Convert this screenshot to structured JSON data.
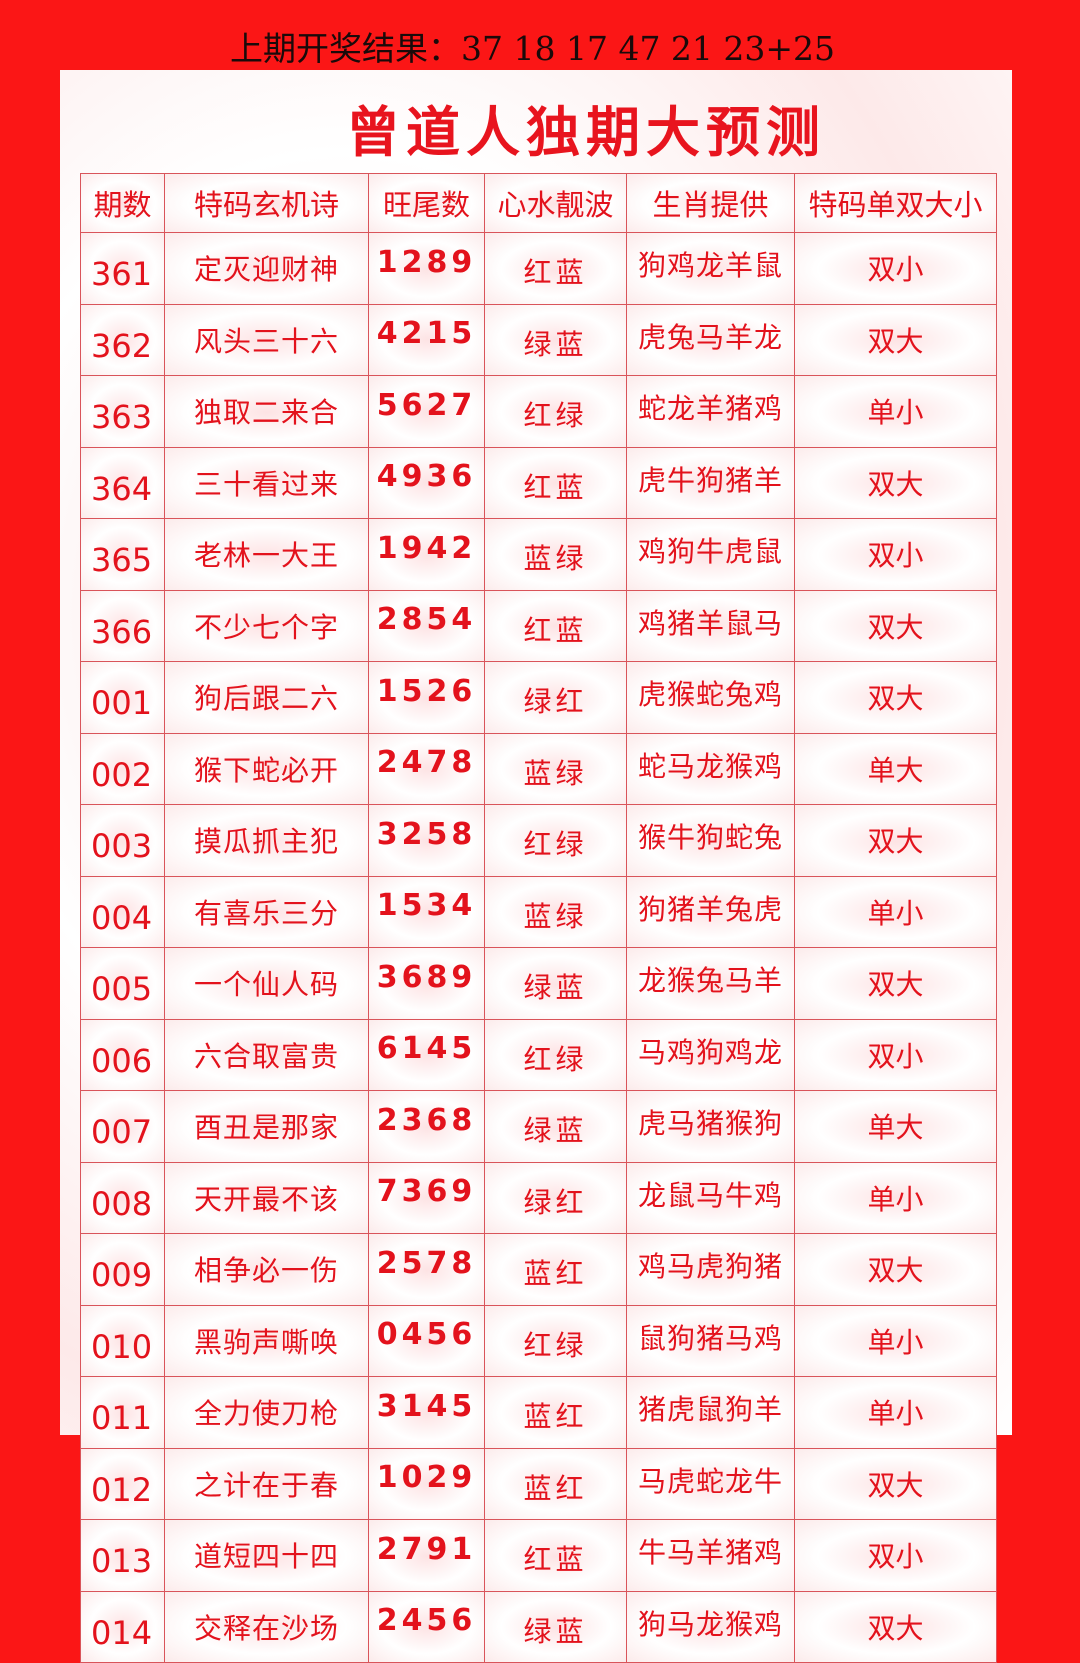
{
  "header": {
    "last_result": "上期开奖结果：37 18 17 47 21 23+25"
  },
  "title": "曾道人独期大预测",
  "colors": {
    "background": "#fb1616",
    "text": "#e3121c"
  },
  "table": {
    "columns": [
      "期数",
      "特码玄机诗",
      "旺尾数",
      "心水靓波",
      "生肖提供",
      "特码单双大小"
    ],
    "rows": [
      [
        "361",
        "定灭迎财神",
        "1289",
        "红蓝",
        "狗鸡龙羊鼠",
        "双小"
      ],
      [
        "362",
        "风头三十六",
        "4215",
        "绿蓝",
        "虎兔马羊龙",
        "双大"
      ],
      [
        "363",
        "独取二来合",
        "5627",
        "红绿",
        "蛇龙羊猪鸡",
        "单小"
      ],
      [
        "364",
        "三十看过来",
        "4936",
        "红蓝",
        "虎牛狗猪羊",
        "双大"
      ],
      [
        "365",
        "老林一大王",
        "1942",
        "蓝绿",
        "鸡狗牛虎鼠",
        "双小"
      ],
      [
        "366",
        "不少七个字",
        "2854",
        "红蓝",
        "鸡猪羊鼠马",
        "双大"
      ],
      [
        "001",
        "狗后跟二六",
        "1526",
        "绿红",
        "虎猴蛇兔鸡",
        "双大"
      ],
      [
        "002",
        "猴下蛇必开",
        "2478",
        "蓝绿",
        "蛇马龙猴鸡",
        "单大"
      ],
      [
        "003",
        "摸瓜抓主犯",
        "3258",
        "红绿",
        "猴牛狗蛇兔",
        "双大"
      ],
      [
        "004",
        "有喜乐三分",
        "1534",
        "蓝绿",
        "狗猪羊兔虎",
        "单小"
      ],
      [
        "005",
        "一个仙人码",
        "3689",
        "绿蓝",
        "龙猴兔马羊",
        "双大"
      ],
      [
        "006",
        "六合取富贵",
        "6145",
        "红绿",
        "马鸡狗鸡龙",
        "双小"
      ],
      [
        "007",
        "酉丑是那家",
        "2368",
        "绿蓝",
        "虎马猪猴狗",
        "单大"
      ],
      [
        "008",
        "天开最不该",
        "7369",
        "绿红",
        "龙鼠马牛鸡",
        "单小"
      ],
      [
        "009",
        "相争必一伤",
        "2578",
        "蓝红",
        "鸡马虎狗猪",
        "双大"
      ],
      [
        "010",
        "黑驹声嘶唤",
        "0456",
        "红绿",
        "鼠狗猪马鸡",
        "单小"
      ],
      [
        "011",
        "全力使刀枪",
        "3145",
        "蓝红",
        "猪虎鼠狗羊",
        "单小"
      ],
      [
        "012",
        "之计在于春",
        "1029",
        "蓝红",
        "马虎蛇龙牛",
        "双大"
      ],
      [
        "013",
        "道短四十四",
        "2791",
        "红蓝",
        "牛马羊猪鸡",
        "双小"
      ],
      [
        "014",
        "交释在沙场",
        "2456",
        "绿蓝",
        "狗马龙猴鸡",
        "双大"
      ]
    ]
  }
}
